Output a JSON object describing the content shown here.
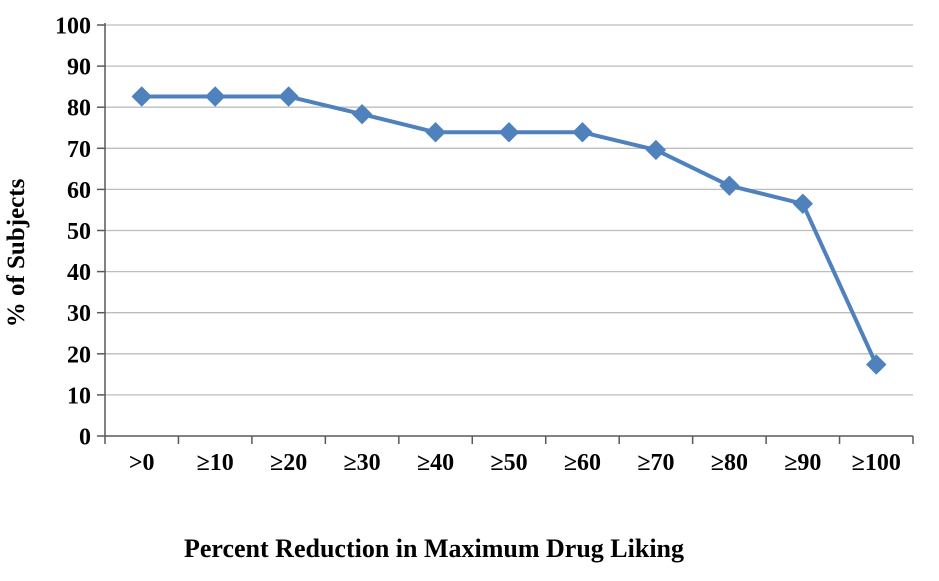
{
  "chart_data": {
    "type": "line",
    "categories": [
      ">0",
      "≥10",
      "≥20",
      "≥30",
      "≥40",
      "≥50",
      "≥60",
      "≥70",
      "≥80",
      "≥90",
      "≥100"
    ],
    "values": [
      82.6,
      82.6,
      82.6,
      78.3,
      73.9,
      73.9,
      73.9,
      69.6,
      60.9,
      56.5,
      17.4
    ],
    "title": "",
    "xlabel": "Percent Reduction in Maximum Drug Liking",
    "ylabel": "% of Subjects",
    "ylim": [
      0,
      100
    ],
    "ytick_step": 10,
    "grid": true,
    "legend": "none",
    "marker": "diamond",
    "series_color": "#4F81BD",
    "gridline_color": "#BDBDBD",
    "axis_color": "#595959",
    "tick_label_color": "#000000",
    "background_color": "#FFFFFF"
  }
}
